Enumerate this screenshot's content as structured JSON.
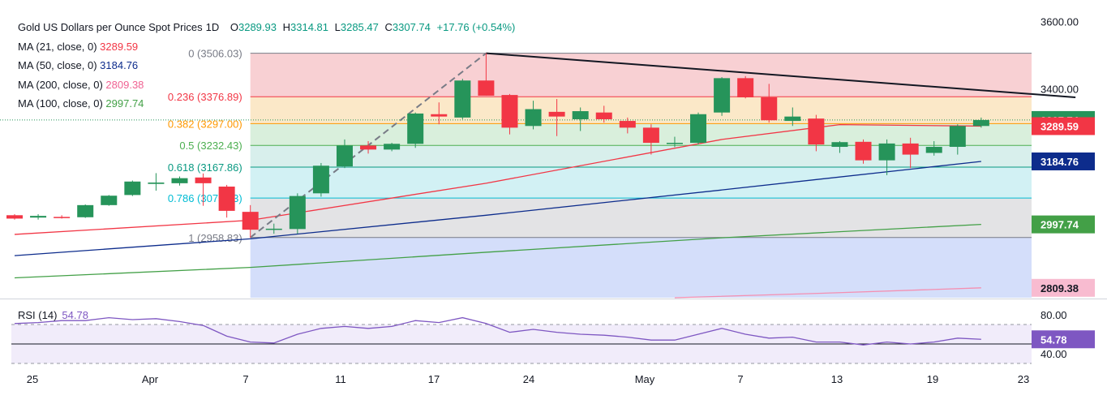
{
  "header": {
    "symbol": "Gold US Dollars per Ounce Spot Prices",
    "timeframe": "1D",
    "open_label": "O",
    "open": "3289.93",
    "high_label": "H",
    "high": "3314.81",
    "low_label": "L",
    "low": "3285.47",
    "close_label": "C",
    "close": "3307.74",
    "change": "+17.76 (+0.54%)"
  },
  "ma_legend": [
    {
      "label": "MA (21, close, 0)",
      "value": "3289.59",
      "color": "#f23645"
    },
    {
      "label": "MA (50, close, 0)",
      "value": "3184.76",
      "color": "#0d2c8c"
    },
    {
      "label": "MA (200, close, 0)",
      "value": "2809.38",
      "color": "#f48fb1"
    },
    {
      "label": "MA (100, close, 0)",
      "value": "2997.74",
      "color": "#43a047"
    }
  ],
  "rsi_legend": {
    "label": "RSI (14)",
    "value": "54.78"
  },
  "colors": {
    "up": "#26945a",
    "down": "#f23645",
    "rsi": "#7e57c2",
    "ma21": "#f23645",
    "ma50": "#0d2c8c",
    "ma200": "#f48fb1",
    "ma100": "#43a047"
  },
  "chart_data": {
    "type": "candlestick",
    "price_axis": {
      "ticks": [
        3600,
        3400
      ],
      "tick_labels": [
        "3600.00",
        "3400.00"
      ],
      "range": [
        2780,
        3640
      ]
    },
    "x_labels": [
      "25",
      "Apr",
      "7",
      "11",
      "17",
      "24",
      "May",
      "7",
      "13",
      "19",
      "23"
    ],
    "candles": [
      {
        "o": 3025,
        "h": 3028,
        "l": 3012,
        "c": 3015
      },
      {
        "o": 3018,
        "h": 3028,
        "l": 3012,
        "c": 3023
      },
      {
        "o": 3020,
        "h": 3025,
        "l": 3015,
        "c": 3019
      },
      {
        "o": 3019,
        "h": 3057,
        "l": 3017,
        "c": 3055
      },
      {
        "o": 3055,
        "h": 3085,
        "l": 3053,
        "c": 3083
      },
      {
        "o": 3085,
        "h": 3128,
        "l": 3082,
        "c": 3125
      },
      {
        "o": 3118,
        "h": 3150,
        "l": 3098,
        "c": 3122
      },
      {
        "o": 3120,
        "h": 3140,
        "l": 3113,
        "c": 3135
      },
      {
        "o": 3137,
        "h": 3149,
        "l": 3053,
        "c": 3120
      },
      {
        "o": 3110,
        "h": 3115,
        "l": 3018,
        "c": 3038
      },
      {
        "o": 3035,
        "h": 3055,
        "l": 2958,
        "c": 2982
      },
      {
        "o": 2982,
        "h": 3000,
        "l": 2970,
        "c": 2985
      },
      {
        "o": 2984,
        "h": 3090,
        "l": 2970,
        "c": 3082
      },
      {
        "o": 3090,
        "h": 3180,
        "l": 3080,
        "c": 3172
      },
      {
        "o": 3170,
        "h": 3250,
        "l": 3165,
        "c": 3232
      },
      {
        "o": 3232,
        "h": 3245,
        "l": 3208,
        "c": 3220
      },
      {
        "o": 3220,
        "h": 3240,
        "l": 3215,
        "c": 3237
      },
      {
        "o": 3237,
        "h": 3330,
        "l": 3225,
        "c": 3327
      },
      {
        "o": 3325,
        "h": 3360,
        "l": 3295,
        "c": 3318
      },
      {
        "o": 3315,
        "h": 3430,
        "l": 3310,
        "c": 3425
      },
      {
        "o": 3425,
        "h": 3506,
        "l": 3380,
        "c": 3380
      },
      {
        "o": 3382,
        "h": 3385,
        "l": 3265,
        "c": 3285
      },
      {
        "o": 3290,
        "h": 3365,
        "l": 3280,
        "c": 3340
      },
      {
        "o": 3332,
        "h": 3370,
        "l": 3260,
        "c": 3318
      },
      {
        "o": 3310,
        "h": 3345,
        "l": 3275,
        "c": 3334
      },
      {
        "o": 3330,
        "h": 3350,
        "l": 3300,
        "c": 3310
      },
      {
        "o": 3305,
        "h": 3315,
        "l": 3268,
        "c": 3285
      },
      {
        "o": 3285,
        "h": 3295,
        "l": 3205,
        "c": 3240
      },
      {
        "o": 3240,
        "h": 3258,
        "l": 3227,
        "c": 3240
      },
      {
        "o": 3240,
        "h": 3330,
        "l": 3235,
        "c": 3325
      },
      {
        "o": 3330,
        "h": 3435,
        "l": 3320,
        "c": 3432
      },
      {
        "o": 3432,
        "h": 3438,
        "l": 3372,
        "c": 3375
      },
      {
        "o": 3375,
        "h": 3415,
        "l": 3300,
        "c": 3307
      },
      {
        "o": 3305,
        "h": 3345,
        "l": 3290,
        "c": 3318
      },
      {
        "o": 3312,
        "h": 3323,
        "l": 3215,
        "c": 3235
      },
      {
        "o": 3228,
        "h": 3245,
        "l": 3210,
        "c": 3242
      },
      {
        "o": 3243,
        "h": 3250,
        "l": 3178,
        "c": 3188
      },
      {
        "o": 3188,
        "h": 3250,
        "l": 3144,
        "c": 3238
      },
      {
        "o": 3238,
        "h": 3255,
        "l": 3165,
        "c": 3205
      },
      {
        "o": 3210,
        "h": 3245,
        "l": 3202,
        "c": 3228
      },
      {
        "o": 3228,
        "h": 3295,
        "l": 3205,
        "c": 3290
      },
      {
        "o": 3290,
        "h": 3315,
        "l": 3285,
        "c": 3307.74
      }
    ],
    "fibonacci": [
      {
        "ratio": "0",
        "label": "0 (3506.03)",
        "price": 3506.03,
        "color": "#787b86"
      },
      {
        "ratio": "0.236",
        "label": "0.236 (3376.89)",
        "price": 3376.89,
        "color": "#f23645"
      },
      {
        "ratio": "0.382",
        "label": "0.382 (3297.00)",
        "price": 3297.0,
        "color": "#ff9800"
      },
      {
        "ratio": "0.5",
        "label": "0.5 (3232.43)",
        "price": 3232.43,
        "color": "#4caf50"
      },
      {
        "ratio": "0.618",
        "label": "0.618 (3167.86)",
        "price": 3167.86,
        "color": "#089981"
      },
      {
        "ratio": "0.786",
        "label": "0.786 (3075.93)",
        "price": 3075.93,
        "color": "#00bcd4"
      },
      {
        "ratio": "1",
        "label": "1 (2958.83)",
        "price": 2958.83,
        "color": "#787b86"
      }
    ],
    "moving_averages": [
      {
        "name": "MA 21",
        "color": "#f23645",
        "points": [
          [
            0,
            2968
          ],
          [
            10,
            3010
          ],
          [
            20,
            3120
          ],
          [
            30,
            3250
          ],
          [
            35,
            3294
          ],
          [
            41,
            3289.59
          ]
        ]
      },
      {
        "name": "MA 50",
        "color": "#0d2c8c",
        "points": [
          [
            0,
            2905
          ],
          [
            10,
            2955
          ],
          [
            20,
            3025
          ],
          [
            30,
            3100
          ],
          [
            41,
            3184.76
          ]
        ]
      },
      {
        "name": "MA 100",
        "color": "#43a047",
        "points": [
          [
            0,
            2839
          ],
          [
            10,
            2870
          ],
          [
            20,
            2915
          ],
          [
            30,
            2958
          ],
          [
            41,
            2997.74
          ]
        ]
      },
      {
        "name": "MA 200",
        "color": "#f48fb1",
        "points": [
          [
            28,
            2780
          ],
          [
            35,
            2795
          ],
          [
            41,
            2809.38
          ]
        ]
      }
    ],
    "trendline": {
      "from": [
        20,
        3506
      ],
      "to": [
        45,
        3375
      ]
    },
    "swing_dashed": {
      "from": [
        10,
        2958.83
      ],
      "to": [
        20,
        3506.03
      ]
    },
    "price_badges": [
      {
        "label": "3307.74",
        "price": 3307.74,
        "color": "#26945a",
        "text": "#ffffff"
      },
      {
        "label": "3289.59",
        "price": 3289.59,
        "color": "#f23645",
        "text": "#ffffff"
      },
      {
        "label": "3184.76",
        "price": 3184.76,
        "color": "#0d2c8c",
        "text": "#ffffff"
      },
      {
        "label": "2997.74",
        "price": 2997.74,
        "color": "#43a047",
        "text": "#ffffff"
      },
      {
        "label": "2809.38",
        "price": 2809.38,
        "color": "#f8bbd0",
        "text": "#131722"
      }
    ],
    "rsi": {
      "range": [
        30,
        95
      ],
      "levels": [
        70,
        50,
        30
      ],
      "tick_labels": [
        "80.00",
        "40.00"
      ],
      "ticks": [
        80,
        40
      ],
      "current": 54.78,
      "values": [
        71,
        72,
        74,
        74,
        77,
        75,
        76,
        73,
        69,
        58,
        52,
        51,
        60,
        66,
        68,
        66,
        68,
        74,
        72,
        77,
        71,
        62,
        65,
        62,
        60,
        59,
        57,
        54,
        54,
        60,
        66,
        60,
        56,
        57,
        52,
        52,
        49,
        52,
        50,
        52,
        56,
        54.78
      ]
    }
  }
}
